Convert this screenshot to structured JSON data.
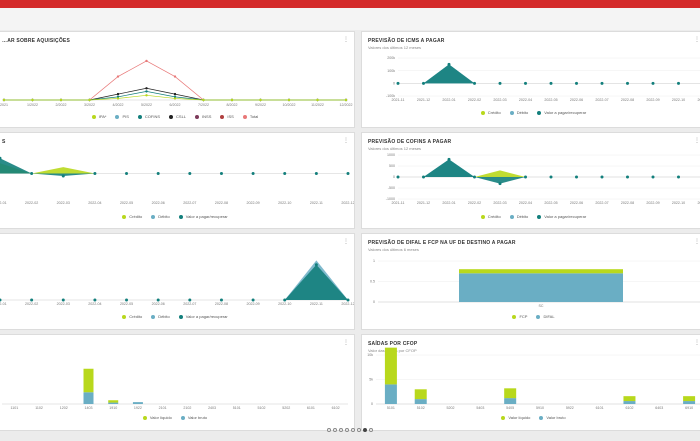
{
  "colors": {
    "credit": "#b8d81c",
    "debit": "#6aaec4",
    "value": "#137f7c",
    "fcp": "#b8d81c",
    "difal": "#6aaec4",
    "liquid": "#b8d81c",
    "gross": "#6aaec4",
    "brand": "#d42a2a"
  },
  "menu_icon": "⋮",
  "pager": {
    "count": 8,
    "active": 6
  },
  "panels": [
    {
      "title": "…AR SOBRE AQUISIÇÕES",
      "subtitle": "",
      "legend": [
        {
          "label": "IPA*",
          "color": "#b8d81c"
        },
        {
          "label": "PIS",
          "color": "#6aaec4"
        },
        {
          "label": "COFINS",
          "color": "#137f7c"
        },
        {
          "label": "CSLL",
          "color": "#222222"
        },
        {
          "label": "INSS",
          "color": "#7c3a5a"
        },
        {
          "label": "ISS",
          "color": "#b04040"
        },
        {
          "label": "Total",
          "color": "#e87878"
        }
      ]
    },
    {
      "title": "PREVISÃO DE ICMS A PAGAR",
      "subtitle": "Valores dos últimos 12 meses",
      "legend": [
        {
          "label": "Crédito",
          "color": "#b8d81c"
        },
        {
          "label": "Débito",
          "color": "#6aaec4"
        },
        {
          "label": "Valor a pagar/recuperar",
          "color": "#137f7c"
        }
      ]
    },
    {
      "title": "S",
      "subtitle": "",
      "legend": [
        {
          "label": "Crédito",
          "color": "#b8d81c"
        },
        {
          "label": "Débito",
          "color": "#6aaec4"
        },
        {
          "label": "Valor a pagar/recuperar",
          "color": "#137f7c"
        }
      ]
    },
    {
      "title": "PREVISÃO DE COFINS A PAGAR",
      "subtitle": "Valores dos últimos 12 meses",
      "legend": [
        {
          "label": "Crédito",
          "color": "#b8d81c"
        },
        {
          "label": "Débito",
          "color": "#6aaec4"
        },
        {
          "label": "Valor a pagar/recuperar",
          "color": "#137f7c"
        }
      ]
    },
    {
      "title": "",
      "subtitle": "",
      "legend": [
        {
          "label": "Crédito",
          "color": "#b8d81c"
        },
        {
          "label": "Débito",
          "color": "#6aaec4"
        },
        {
          "label": "Valor a pagar/recuperar",
          "color": "#137f7c"
        }
      ]
    },
    {
      "title": "PREVISÃO DE DIFAL E FCP NA UF DE DESTINO A PAGAR",
      "subtitle": "Valores dos últimos 6 meses",
      "legend": [
        {
          "label": "FCP",
          "color": "#b8d81c"
        },
        {
          "label": "DIFAL",
          "color": "#6aaec4"
        }
      ]
    },
    {
      "title": "",
      "subtitle": "",
      "legend": [
        {
          "label": "Valor líquido",
          "color": "#b8d81c"
        },
        {
          "label": "Valor bruto",
          "color": "#6aaec4"
        }
      ]
    },
    {
      "title": "SAÍDAS POR CFOP",
      "subtitle": "Valor das saídas por CFOP",
      "legend": [
        {
          "label": "Valor líquido",
          "color": "#b8d81c"
        },
        {
          "label": "Valor bruto",
          "color": "#6aaec4"
        }
      ]
    }
  ],
  "chart_data": [
    {
      "type": "line",
      "x": [
        "2021",
        "1/2022",
        "2/2022",
        "3/2022",
        "4/2022",
        "5/2022",
        "6/2022",
        "7/2022",
        "8/2022",
        "9/2022",
        "10/2022",
        "11/2022",
        "12/2022"
      ],
      "ytick_labels": [],
      "series": [
        {
          "name": "Total",
          "values": [
            0,
            0,
            0,
            0,
            0.6,
            1.0,
            0.6,
            0,
            0,
            0,
            0,
            0,
            0
          ]
        },
        {
          "name": "CSLL",
          "values": [
            0,
            0,
            0,
            0,
            0.15,
            0.3,
            0.15,
            0,
            0,
            0,
            0,
            0,
            0
          ]
        },
        {
          "name": "COFINS",
          "values": [
            0,
            0,
            0,
            0,
            0.08,
            0.22,
            0.08,
            0,
            0,
            0,
            0,
            0,
            0
          ]
        },
        {
          "name": "IPA*",
          "values": [
            0,
            0,
            0,
            0,
            0.04,
            0.12,
            0.04,
            0,
            0,
            0,
            0,
            0,
            0
          ]
        }
      ],
      "ylim": [
        0,
        1.1
      ]
    },
    {
      "type": "area",
      "x": [
        "2021-11",
        "2021-12",
        "2022-01",
        "2022-02",
        "2022-03",
        "2022-04",
        "2022-05",
        "2022-06",
        "2022-07",
        "2022-08",
        "2022-09",
        "2022-10",
        "2022-11"
      ],
      "ytick_labels": [
        "200k",
        "100k",
        "0",
        "-100k"
      ],
      "ylim": [
        -100,
        200
      ],
      "credit": [
        0,
        0,
        0,
        0,
        0,
        0,
        0,
        0,
        0,
        0,
        0,
        0,
        0
      ],
      "debit": [
        0,
        0,
        150,
        0,
        0,
        0,
        0,
        0,
        0,
        0,
        0,
        0,
        0
      ],
      "value": [
        0,
        0,
        150,
        0,
        0,
        0,
        0,
        0,
        0,
        0,
        0,
        0,
        0
      ]
    },
    {
      "type": "area",
      "x": [
        "2022-01",
        "2022-02",
        "2022-03",
        "2022-04",
        "2022-05",
        "2022-06",
        "2022-07",
        "2022-08",
        "2022-09",
        "2022-10",
        "2022-11",
        "2022-12"
      ],
      "ytick_labels": [],
      "ylim": [
        -100,
        100
      ],
      "credit": [
        40,
        0,
        25,
        0,
        0,
        0,
        0,
        0,
        0,
        0,
        0,
        0
      ],
      "debit": [
        0,
        0,
        0,
        0,
        0,
        0,
        0,
        0,
        0,
        0,
        0,
        0
      ],
      "value": [
        60,
        0,
        -10,
        0,
        0,
        0,
        0,
        0,
        0,
        0,
        0,
        0
      ]
    },
    {
      "type": "area",
      "x": [
        "2021-11",
        "2021-12",
        "2022-01",
        "2022-02",
        "2022-03",
        "2022-04",
        "2022-05",
        "2022-06",
        "2022-07",
        "2022-08",
        "2022-09",
        "2022-10",
        "2022-11"
      ],
      "ytick_labels": [
        "1000",
        "500",
        "0",
        "-500",
        "-1000"
      ],
      "ylim": [
        -1000,
        1000
      ],
      "credit": [
        0,
        0,
        0,
        0,
        300,
        0,
        0,
        0,
        0,
        0,
        0,
        0,
        0
      ],
      "debit": [
        0,
        0,
        800,
        0,
        0,
        0,
        0,
        0,
        0,
        0,
        0,
        0,
        0
      ],
      "value": [
        0,
        0,
        800,
        0,
        -300,
        0,
        0,
        0,
        0,
        0,
        0,
        0,
        0
      ]
    },
    {
      "type": "area",
      "x": [
        "2022-01",
        "2022-02",
        "2022-03",
        "2022-04",
        "2022-05",
        "2022-06",
        "2022-07",
        "2022-08",
        "2022-09",
        "2022-10",
        "2022-11",
        "2022-12"
      ],
      "ytick_labels": [],
      "ylim": [
        0,
        100
      ],
      "credit": [
        0,
        0,
        0,
        0,
        0,
        0,
        0,
        0,
        0,
        0,
        0,
        0
      ],
      "debit": [
        0,
        0,
        0,
        0,
        0,
        0,
        0,
        0,
        0,
        0,
        90,
        0
      ],
      "value": [
        0,
        0,
        0,
        0,
        0,
        0,
        0,
        0,
        0,
        0,
        80,
        0
      ]
    },
    {
      "type": "bar",
      "categories": [
        "SC"
      ],
      "ytick_labels": [
        "1",
        "0.5",
        "0"
      ],
      "ylim": [
        0,
        1
      ],
      "series": [
        {
          "name": "FCP",
          "values": [
            0.1
          ]
        },
        {
          "name": "DIFAL",
          "values": [
            0.7
          ]
        }
      ]
    },
    {
      "type": "bar",
      "categories": [
        "1101",
        "1102",
        "1202",
        "1403",
        "1910",
        "1922",
        "2101",
        "2102",
        "2403",
        "5101",
        "5102",
        "5202",
        "6101",
        "6102"
      ],
      "ytick_labels": [],
      "ylim": [
        0,
        100
      ],
      "series": [
        {
          "name": "Valor líquido",
          "values": [
            0,
            0,
            0,
            50,
            5,
            0,
            0,
            0,
            0,
            0,
            0,
            0,
            0,
            0
          ]
        },
        {
          "name": "Valor bruto",
          "values": [
            0,
            0,
            0,
            25,
            3,
            4,
            0,
            0,
            0,
            0,
            0,
            0,
            0,
            0
          ]
        }
      ]
    },
    {
      "type": "bar",
      "categories": [
        "5101",
        "5102",
        "5202",
        "5403",
        "5405",
        "5910",
        "5922",
        "6101",
        "6102",
        "6403",
        "6910"
      ],
      "ytick_labels": [
        "10k",
        "5k",
        "0"
      ],
      "ylim": [
        0,
        10
      ],
      "series": [
        {
          "name": "Valor líquido",
          "values": [
            7.5,
            2,
            0,
            0,
            2,
            0,
            0,
            0,
            1,
            0,
            1
          ]
        },
        {
          "name": "Valor bruto",
          "values": [
            4,
            1,
            0,
            0,
            1.2,
            0,
            0,
            0,
            0.6,
            0,
            0.6
          ]
        }
      ]
    }
  ]
}
